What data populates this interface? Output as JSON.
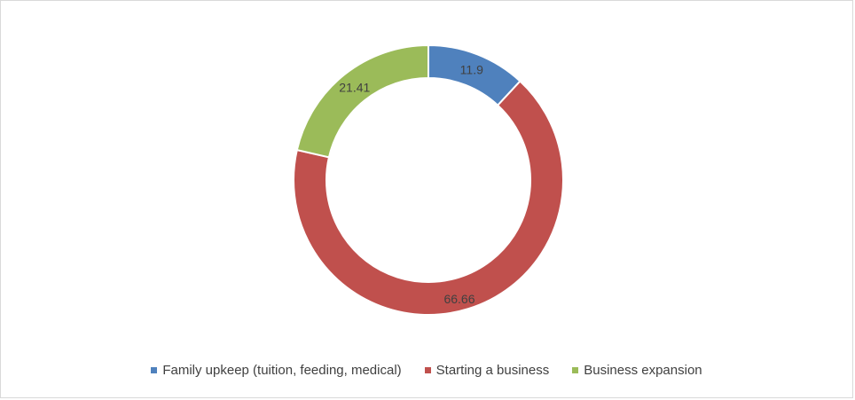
{
  "chart_data": {
    "type": "pie",
    "variant": "doughnut",
    "categories": [
      "Family upkeep (tuition, feeding, medical)",
      "Starting a business",
      "Business expansion"
    ],
    "values": [
      11.9,
      66.66,
      21.41
    ],
    "data_labels": [
      "11.9",
      "66.66",
      "21.41"
    ],
    "colors": [
      "#4f81bd",
      "#c0504d",
      "#9bbb59"
    ],
    "legend_position": "bottom"
  }
}
